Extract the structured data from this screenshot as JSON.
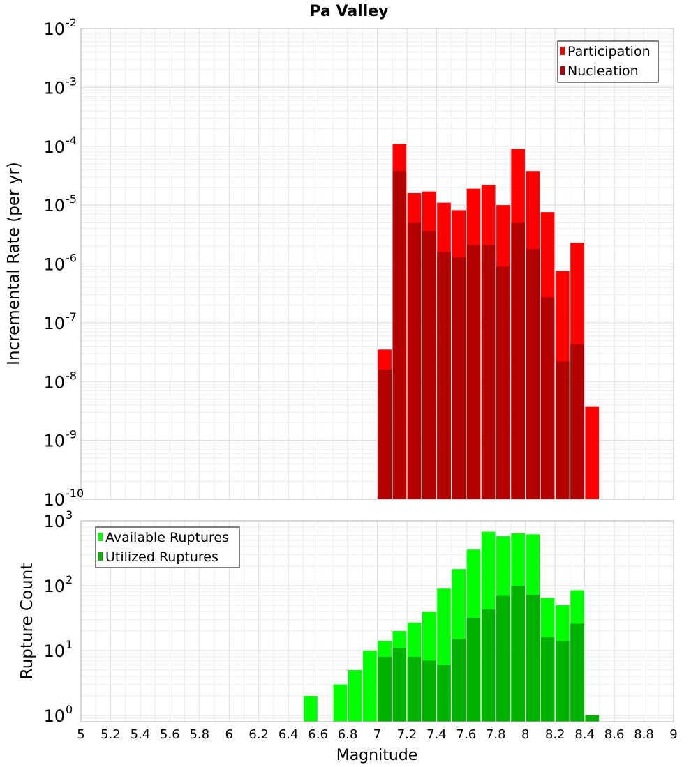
{
  "title": "Pa Valley",
  "colors": {
    "participation": "#ff0000",
    "nucleation": "#b30000",
    "available": "#00ff00",
    "utilized": "#00b300",
    "grid": "#e6e6e6",
    "plot_border": "#b3b3b3"
  },
  "chart_data": [
    {
      "type": "bar",
      "yscale": "log",
      "ylabel": "Incremental Rate (per yr)",
      "xlim": [
        5,
        9
      ],
      "ylim": [
        1e-10,
        0.01
      ],
      "ytick_exponents": [
        "-2",
        "-3",
        "-4",
        "-5",
        "-6",
        "-7",
        "-8",
        "-9",
        "-10"
      ],
      "grid": true,
      "legend_position": "top-right",
      "bin_width": 0.1,
      "x": [
        7.05,
        7.15,
        7.25,
        7.35,
        7.45,
        7.55,
        7.65,
        7.75,
        7.85,
        7.95,
        8.05,
        8.15,
        8.25,
        8.35,
        8.45
      ],
      "series": [
        {
          "name": "Participation",
          "values": [
            3.5e-08,
            0.00011,
            1.6e-05,
            1.7e-05,
            1.1e-05,
            8.2e-06,
            1.9e-05,
            2.2e-05,
            1e-05,
            9e-05,
            3.8e-05,
            7.6e-06,
            7.6e-07,
            2.3e-06,
            3.8e-09
          ]
        },
        {
          "name": "Nucleation",
          "values": [
            1.6e-08,
            3.8e-05,
            5e-06,
            3.6e-06,
            1.6e-06,
            1.3e-06,
            2.1e-06,
            2.1e-06,
            9e-07,
            5e-06,
            1.8e-06,
            2.7e-07,
            2.2e-08,
            4.3e-08,
            null
          ]
        }
      ]
    },
    {
      "type": "bar",
      "yscale": "log",
      "ylabel": "Rupture Count",
      "xlabel": "Magnitude",
      "xlim": [
        5,
        9
      ],
      "ylim": [
        0.8,
        1000
      ],
      "ytick_exponents": [
        "3",
        "2",
        "1",
        "0"
      ],
      "xticks": [
        "5",
        "5.2",
        "5.4",
        "5.6",
        "5.8",
        "6",
        "6.2",
        "6.4",
        "6.6",
        "6.8",
        "7",
        "7.2",
        "7.4",
        "7.6",
        "7.8",
        "8",
        "8.2",
        "8.4",
        "8.6",
        "8.8",
        "9"
      ],
      "grid": true,
      "legend_position": "top-left",
      "bin_width": 0.1,
      "x": [
        6.55,
        6.75,
        6.85,
        6.95,
        7.05,
        7.15,
        7.25,
        7.35,
        7.45,
        7.55,
        7.65,
        7.75,
        7.85,
        7.95,
        8.05,
        8.15,
        8.25,
        8.35,
        8.45
      ],
      "series": [
        {
          "name": "Available Ruptures",
          "values": [
            2,
            3,
            5,
            10,
            14,
            20,
            27,
            40,
            90,
            180,
            360,
            680,
            580,
            640,
            620,
            65,
            50,
            85,
            1
          ]
        },
        {
          "name": "Utilized Ruptures",
          "values": [
            null,
            null,
            null,
            null,
            8,
            11,
            8,
            7,
            6,
            15,
            32,
            43,
            70,
            100,
            72,
            16,
            14,
            26,
            1
          ]
        }
      ]
    }
  ]
}
